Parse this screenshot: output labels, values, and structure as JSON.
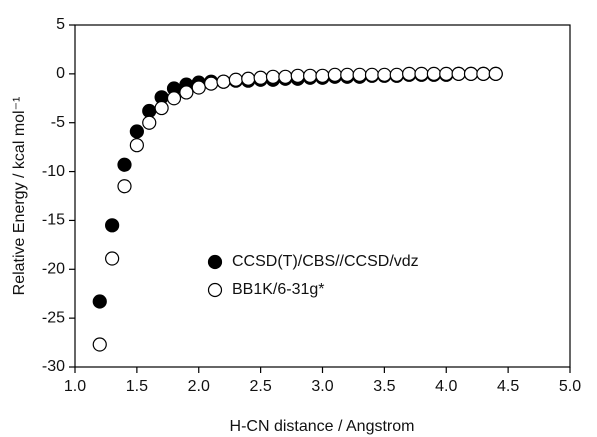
{
  "chart_data": {
    "type": "scatter",
    "xlabel": "H-CN distance / Angstrom",
    "ylabel": "Relative Energy / kcal mol⁻¹",
    "x": [
      1.2,
      1.3,
      1.4,
      1.5,
      1.6,
      1.7,
      1.8,
      1.9,
      2.0,
      2.1,
      2.2,
      2.3,
      2.4,
      2.5,
      2.6,
      2.7,
      2.8,
      2.9,
      3.0,
      3.1,
      3.2,
      3.3,
      3.4,
      3.5,
      3.6,
      3.7,
      3.8,
      3.9,
      4.0,
      4.1,
      4.2,
      4.3,
      4.4
    ],
    "series": [
      {
        "name": "CCSD(T)/CBS//CCSD/vdz",
        "color": "#000000",
        "marker": "filled",
        "values": [
          -23.3,
          -15.5,
          -9.3,
          -5.9,
          -3.8,
          -2.4,
          -1.5,
          -1.1,
          -0.9,
          -0.8,
          -0.8,
          -0.7,
          -0.7,
          -0.6,
          -0.6,
          -0.5,
          -0.5,
          -0.4,
          -0.4,
          -0.3,
          -0.3,
          -0.3,
          -0.2,
          -0.2,
          -0.2,
          -0.1,
          -0.1,
          -0.1,
          -0.1,
          0,
          0,
          0,
          0
        ]
      },
      {
        "name": "BB1K/6-31g*",
        "color": "#000000",
        "marker": "open",
        "values": [
          -27.7,
          -18.9,
          -11.5,
          -7.3,
          -5.0,
          -3.5,
          -2.5,
          -1.9,
          -1.4,
          -1.0,
          -0.8,
          -0.6,
          -0.5,
          -0.4,
          -0.3,
          -0.3,
          -0.2,
          -0.2,
          -0.2,
          -0.1,
          -0.1,
          -0.1,
          -0.1,
          -0.1,
          -0.1,
          0,
          0,
          0,
          0,
          0,
          0,
          0,
          0
        ]
      }
    ],
    "xlim": [
      1.0,
      5.0
    ],
    "xticks": [
      {
        "value": 1.0,
        "label": "1.0"
      },
      {
        "value": 1.5,
        "label": "1.5"
      },
      {
        "value": 2.0,
        "label": "2.0"
      },
      {
        "value": 2.5,
        "label": "2.5"
      },
      {
        "value": 3.0,
        "label": "3.0"
      },
      {
        "value": 3.5,
        "label": "3.5"
      },
      {
        "value": 4.0,
        "label": "4.0"
      },
      {
        "value": 4.5,
        "label": "4.5"
      },
      {
        "value": 5.0,
        "label": "5.0"
      }
    ],
    "ylim": [
      -30,
      5
    ],
    "yticks": [
      5,
      0,
      -5,
      -10,
      -15,
      -20,
      -25,
      -30
    ],
    "grid": false,
    "legend": "center"
  }
}
